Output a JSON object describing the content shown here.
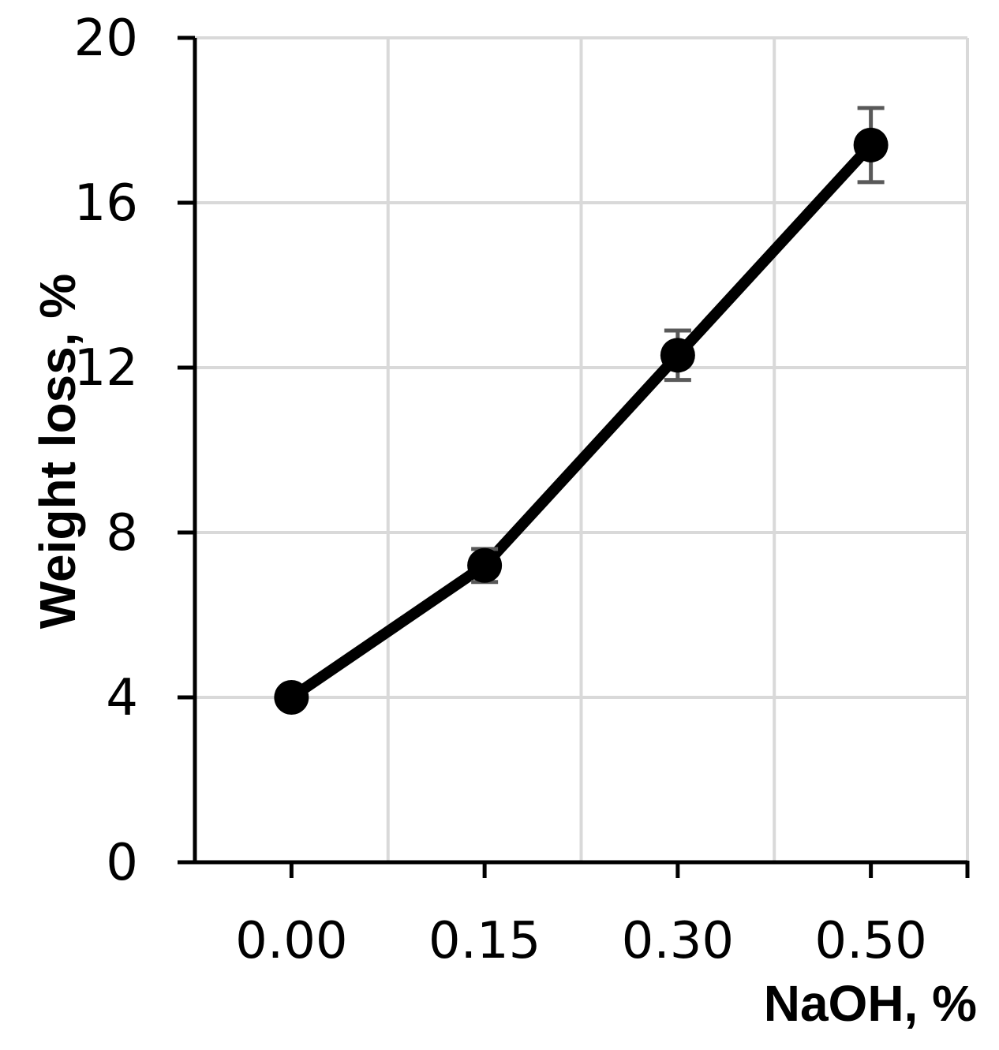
{
  "chart_data": {
    "type": "line",
    "xlabel": "NaOH, %",
    "ylabel": "Weight loss, %",
    "categories": [
      "0.00",
      "0.15",
      "0.30",
      "0.50"
    ],
    "series": [
      {
        "values": [
          4.0,
          7.2,
          12.3,
          17.4
        ],
        "error": [
          0.1,
          0.4,
          0.6,
          0.9
        ]
      }
    ],
    "ylim": [
      0,
      20
    ],
    "yticks": [
      0,
      4,
      8,
      12,
      16,
      20
    ],
    "ytick_labels": [
      "0",
      "4",
      "8",
      "12",
      "16",
      "20"
    ],
    "grid": true,
    "colors": {
      "line": "#000000",
      "marker": "#000000",
      "errorbar": "#595959",
      "grid": "#d9d9d9",
      "axis": "#000000"
    }
  }
}
